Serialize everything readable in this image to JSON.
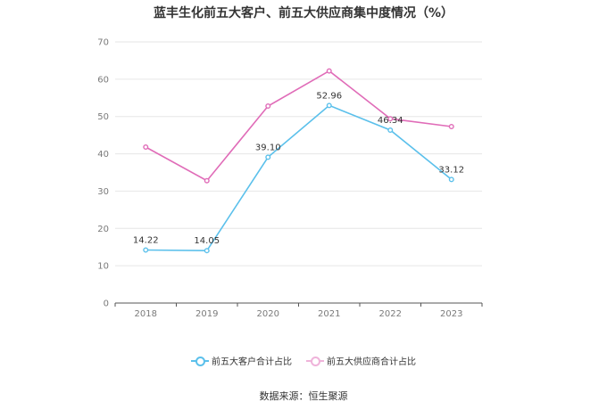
{
  "chart_data": {
    "type": "line",
    "title": "蓝丰生化前五大客户、前五大供应商集中度情况（%）",
    "x": [
      "2018",
      "2019",
      "2020",
      "2021",
      "2022",
      "2023"
    ],
    "ylim": [
      0,
      70
    ],
    "yticks": [
      0,
      10,
      20,
      30,
      40,
      50,
      60,
      70
    ],
    "grid": true,
    "legend_position": "bottom",
    "series": [
      {
        "name": "前五大客户合计占比",
        "color": "#5bc0eb",
        "values": [
          14.22,
          14.05,
          39.1,
          52.96,
          46.34,
          33.12
        ],
        "labels": [
          "14.22",
          "14.05",
          "39.10",
          "52.96",
          "46.34",
          "33.12"
        ]
      },
      {
        "name": "前五大供应商合计占比",
        "color": "#e06cb8",
        "values": [
          41.8,
          32.8,
          52.8,
          62.2,
          49.4,
          47.3
        ],
        "labels": null
      }
    ]
  },
  "source_text": "数据来源：恒生聚源"
}
